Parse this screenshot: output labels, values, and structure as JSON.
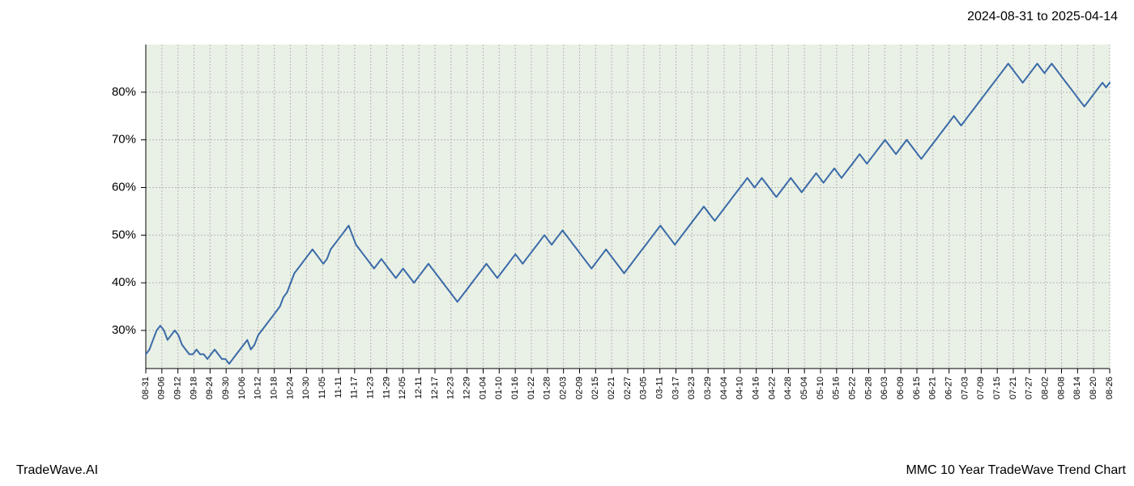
{
  "header": {
    "date_range": "2024-08-31 to 2025-04-14"
  },
  "footer": {
    "brand": "TradeWave.AI",
    "title": "MMC 10 Year TradeWave Trend Chart"
  },
  "chart": {
    "type": "line",
    "background_color": "#ffffff",
    "shaded_region_color": "#dfe9da",
    "shaded_region_opacity": 0.7,
    "line_color": "#3a6aa8",
    "line_width": 2,
    "grid_color": "#b8b8b8",
    "grid_dash": "2,2",
    "axis_color": "#000000",
    "ylim": [
      22,
      90
    ],
    "yticks": [
      30,
      40,
      50,
      60,
      70,
      80
    ],
    "ytick_labels": [
      "30%",
      "40%",
      "50%",
      "60%",
      "70%",
      "80%"
    ],
    "ytick_fontsize": 15,
    "xtick_fontsize": 11,
    "xtick_rotation": -90,
    "shaded_x_start": "08-31",
    "shaded_x_end": "04-14",
    "x_labels": [
      "08-31",
      "09-06",
      "09-12",
      "09-18",
      "09-24",
      "09-30",
      "10-06",
      "10-12",
      "10-18",
      "10-24",
      "10-30",
      "11-05",
      "11-11",
      "11-17",
      "11-23",
      "11-29",
      "12-05",
      "12-11",
      "12-17",
      "12-23",
      "12-29",
      "01-04",
      "01-10",
      "01-16",
      "01-22",
      "01-28",
      "02-03",
      "02-09",
      "02-15",
      "02-21",
      "02-27",
      "03-05",
      "03-11",
      "03-17",
      "03-23",
      "03-29",
      "04-04",
      "04-10",
      "04-16",
      "04-22",
      "04-28",
      "05-04",
      "05-10",
      "05-16",
      "05-22",
      "05-28",
      "06-03",
      "06-09",
      "06-15",
      "06-21",
      "06-27",
      "07-03",
      "07-09",
      "07-15",
      "07-21",
      "07-27",
      "08-02",
      "08-08",
      "08-14",
      "08-20",
      "08-26"
    ],
    "values": [
      25,
      26,
      28,
      30,
      31,
      30,
      28,
      29,
      30,
      29,
      27,
      26,
      25,
      25,
      26,
      25,
      25,
      24,
      25,
      26,
      25,
      24,
      24,
      23,
      24,
      25,
      26,
      27,
      28,
      26,
      27,
      29,
      30,
      31,
      32,
      33,
      34,
      35,
      37,
      38,
      40,
      42,
      43,
      44,
      45,
      46,
      47,
      46,
      45,
      44,
      45,
      47,
      48,
      49,
      50,
      51,
      52,
      50,
      48,
      47,
      46,
      45,
      44,
      43,
      44,
      45,
      44,
      43,
      42,
      41,
      42,
      43,
      42,
      41,
      40,
      41,
      42,
      43,
      44,
      43,
      42,
      41,
      40,
      39,
      38,
      37,
      36,
      37,
      38,
      39,
      40,
      41,
      42,
      43,
      44,
      43,
      42,
      41,
      42,
      43,
      44,
      45,
      46,
      45,
      44,
      45,
      46,
      47,
      48,
      49,
      50,
      49,
      48,
      49,
      50,
      51,
      50,
      49,
      48,
      47,
      46,
      45,
      44,
      43,
      44,
      45,
      46,
      47,
      46,
      45,
      44,
      43,
      42,
      43,
      44,
      45,
      46,
      47,
      48,
      49,
      50,
      51,
      52,
      51,
      50,
      49,
      48,
      49,
      50,
      51,
      52,
      53,
      54,
      55,
      56,
      55,
      54,
      53,
      54,
      55,
      56,
      57,
      58,
      59,
      60,
      61,
      62,
      61,
      60,
      61,
      62,
      61,
      60,
      59,
      58,
      59,
      60,
      61,
      62,
      61,
      60,
      59,
      60,
      61,
      62,
      63,
      62,
      61,
      62,
      63,
      64,
      63,
      62,
      63,
      64,
      65,
      66,
      67,
      66,
      65,
      66,
      67,
      68,
      69,
      70,
      69,
      68,
      67,
      68,
      69,
      70,
      69,
      68,
      67,
      66,
      67,
      68,
      69,
      70,
      71,
      72,
      73,
      74,
      75,
      74,
      73,
      74,
      75,
      76,
      77,
      78,
      79,
      80,
      81,
      82,
      83,
      84,
      85,
      86,
      85,
      84,
      83,
      82,
      83,
      84,
      85,
      86,
      85,
      84,
      85,
      86,
      85,
      84,
      83,
      82,
      81,
      80,
      79,
      78,
      77,
      78,
      79,
      80,
      81,
      82,
      81,
      82
    ]
  }
}
